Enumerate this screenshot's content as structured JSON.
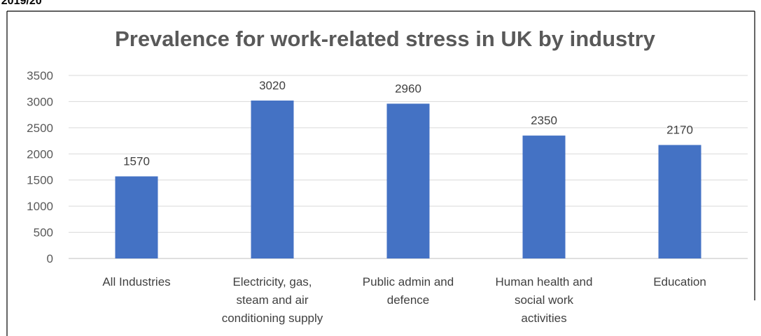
{
  "header_fragment": "- 2019/20",
  "chart_data": {
    "type": "bar",
    "title": "Prevalence for work-related stress in UK by industry",
    "xlabel": "",
    "ylabel": "",
    "ylim": [
      0,
      3500
    ],
    "yticks": [
      0,
      500,
      1000,
      1500,
      2000,
      2500,
      3000,
      3500
    ],
    "grid": true,
    "legend": "none",
    "categories": [
      [
        "All Industries"
      ],
      [
        "Electricity, gas,",
        "steam and air",
        "conditioning supply"
      ],
      [
        "Public admin and",
        "defence"
      ],
      [
        "Human health and",
        "social work",
        "activities"
      ],
      [
        "Education"
      ]
    ],
    "values": [
      1570,
      3020,
      2960,
      2350,
      2170
    ],
    "colors": {
      "bar": "#4472C4",
      "grid": "#D9D9D9",
      "axis": "#BFBFBF",
      "title": "#595959",
      "text": "#595959"
    }
  }
}
